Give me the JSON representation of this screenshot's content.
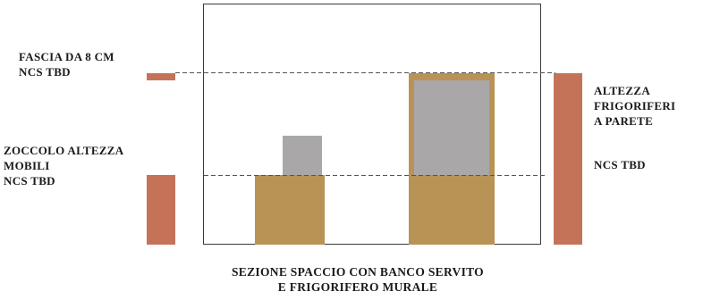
{
  "colors": {
    "terracotta": "#c57358",
    "wood": "#b89355",
    "grey": "#a9a7a8",
    "line": "#3a3a3a",
    "dash": "#555555"
  },
  "labels": {
    "fascia": [
      "FASCIA DA 8 CM",
      "NCS TBD"
    ],
    "zoccolo": [
      "ZOCCOLO ALTEZZA",
      "MOBILI",
      "NCS TBD"
    ],
    "altezza": [
      "ALTEZZA",
      "FRIGORIFERI",
      "A PARETE"
    ],
    "altezza_ncs": "NCS TBD",
    "caption": [
      "SEZIONE SPACCIO CON BANCO SERVITO",
      "E FRIGORIFERO MURALE"
    ]
  }
}
